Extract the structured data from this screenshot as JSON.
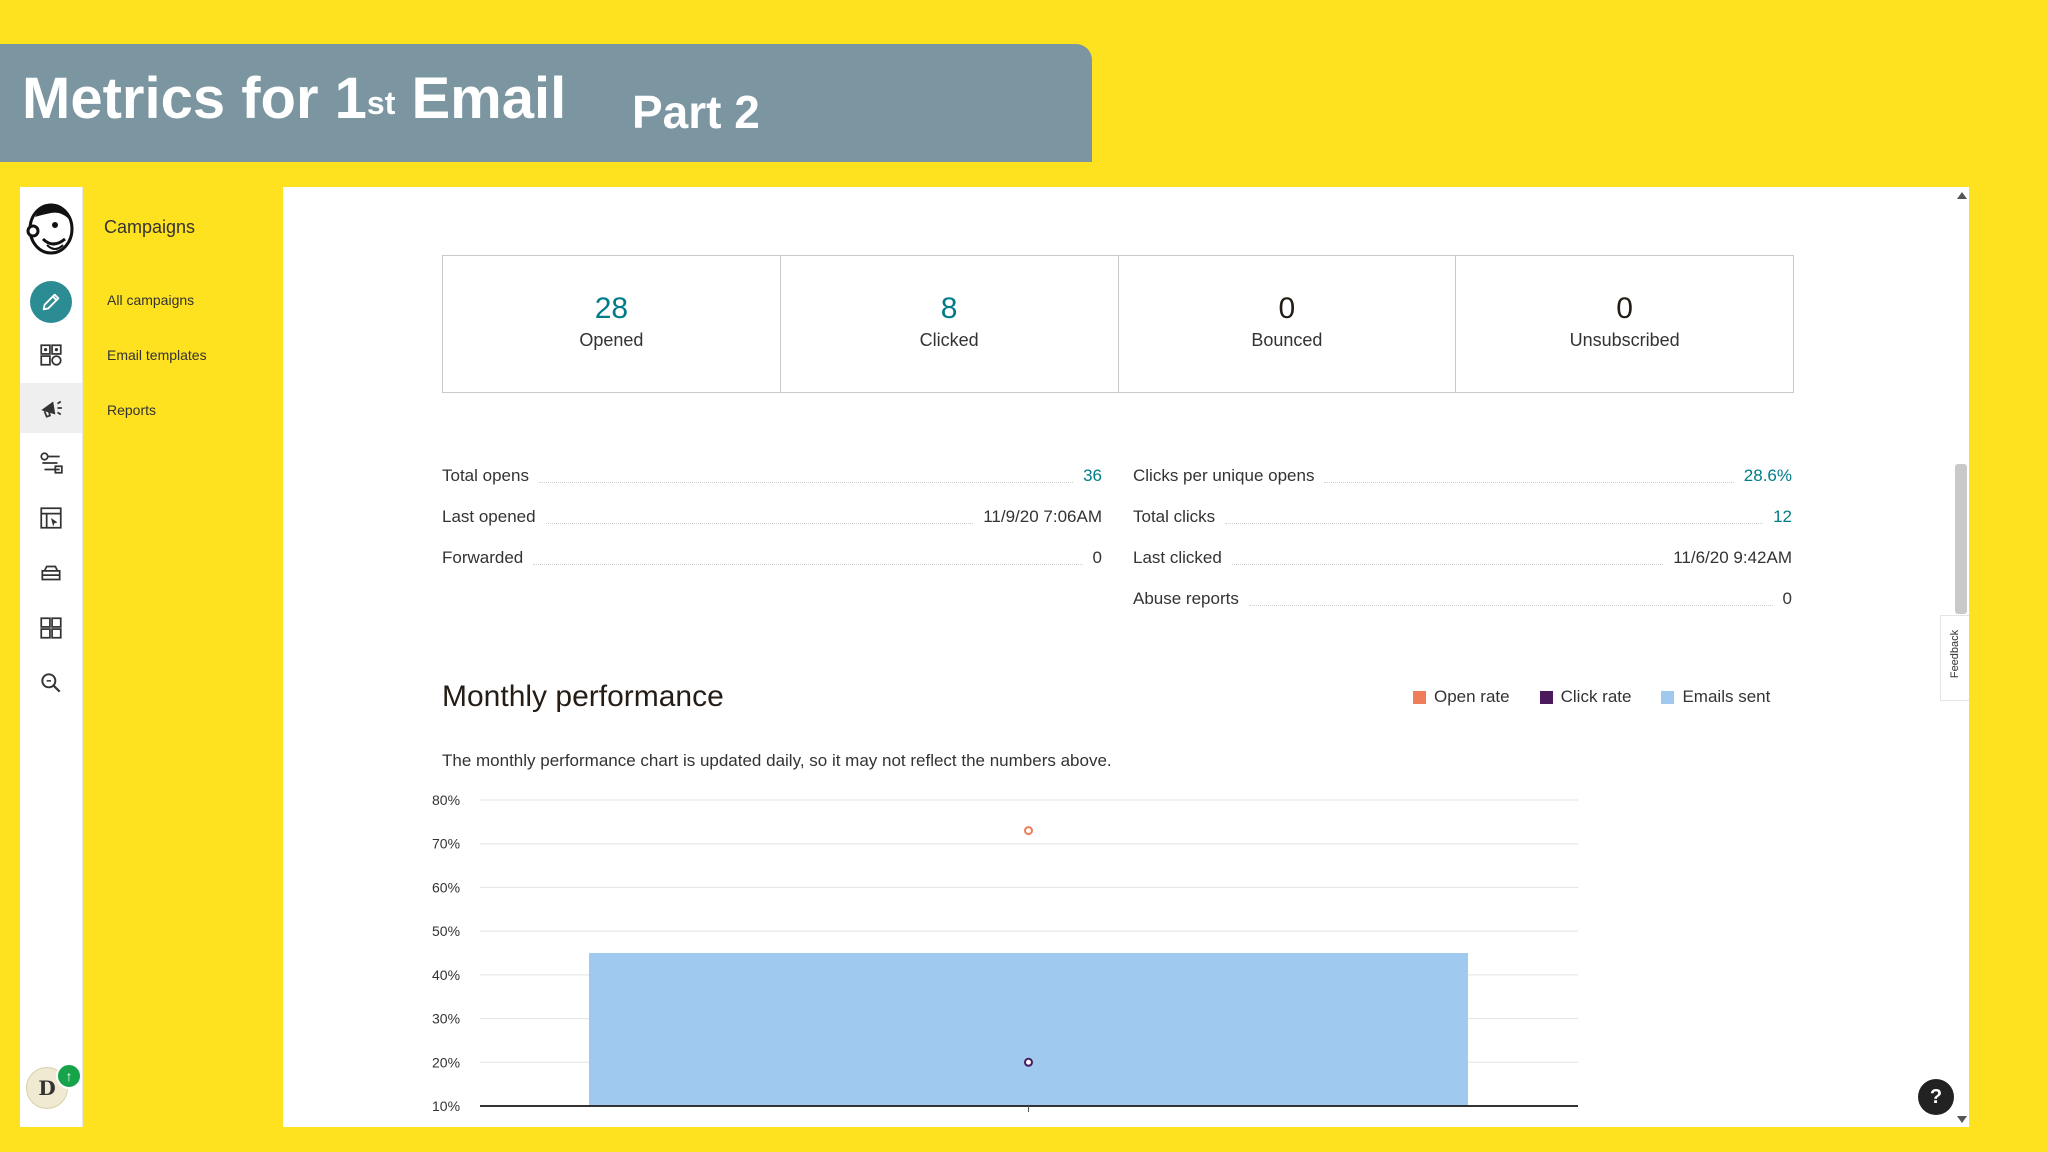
{
  "slide": {
    "title": "Metrics for 1",
    "title_sup": "st",
    "title_tail": " Email",
    "subtitle": "Part 2"
  },
  "rail": {
    "icons": [
      "mailchimp-freddie-logo",
      "pencil-icon",
      "audience-icon",
      "megaphone-icon",
      "automation-icon",
      "website-icon",
      "content-icon",
      "integrations-icon",
      "search-icon"
    ],
    "avatar_initial": "D",
    "avatar_badge": "↑"
  },
  "subnav": {
    "heading": "Campaigns",
    "items": [
      "All campaigns",
      "Email templates",
      "Reports"
    ]
  },
  "kpis": [
    {
      "value": "28",
      "label": "Opened",
      "accent": true
    },
    {
      "value": "8",
      "label": "Clicked",
      "accent": true
    },
    {
      "value": "0",
      "label": "Bounced",
      "accent": false
    },
    {
      "value": "0",
      "label": "Unsubscribed",
      "accent": false
    }
  ],
  "stats_left": [
    {
      "label": "Total opens",
      "value": "36",
      "accent": true
    },
    {
      "label": "Last opened",
      "value": "11/9/20 7:06AM",
      "accent": false
    },
    {
      "label": "Forwarded",
      "value": "0",
      "accent": false
    }
  ],
  "stats_right": [
    {
      "label": "Clicks per unique opens",
      "value": "28.6%",
      "accent": true
    },
    {
      "label": "Total clicks",
      "value": "12",
      "accent": true
    },
    {
      "label": "Last clicked",
      "value": "11/6/20 9:42AM",
      "accent": false
    },
    {
      "label": "Abuse reports",
      "value": "0",
      "accent": false
    }
  ],
  "performance": {
    "title": "Monthly performance",
    "note": "The monthly performance chart is updated daily, so it may not reflect the numbers above.",
    "legend": [
      {
        "label": "Open rate",
        "color": "#EF7D5C"
      },
      {
        "label": "Click rate",
        "color": "#4A1A5C"
      },
      {
        "label": "Emails sent",
        "color": "#9FC9EE"
      }
    ]
  },
  "feedback_label": "Feedback",
  "help_label": "?",
  "colors": {
    "accent": "#007C89",
    "background": "#FEE11F",
    "banner": "#7B95A1"
  },
  "chart_data": {
    "type": "bar",
    "y_ticks": [
      "80%",
      "70%",
      "60%",
      "50%",
      "40%",
      "30%",
      "20%",
      "10%"
    ],
    "ylim": [
      10,
      80
    ],
    "grid": true,
    "categories": [
      ""
    ],
    "series": [
      {
        "name": "Emails sent",
        "type": "bar",
        "values": [
          45
        ]
      },
      {
        "name": "Open rate",
        "type": "point",
        "values": [
          73
        ]
      },
      {
        "name": "Click rate",
        "type": "point",
        "values": [
          20
        ]
      }
    ]
  }
}
